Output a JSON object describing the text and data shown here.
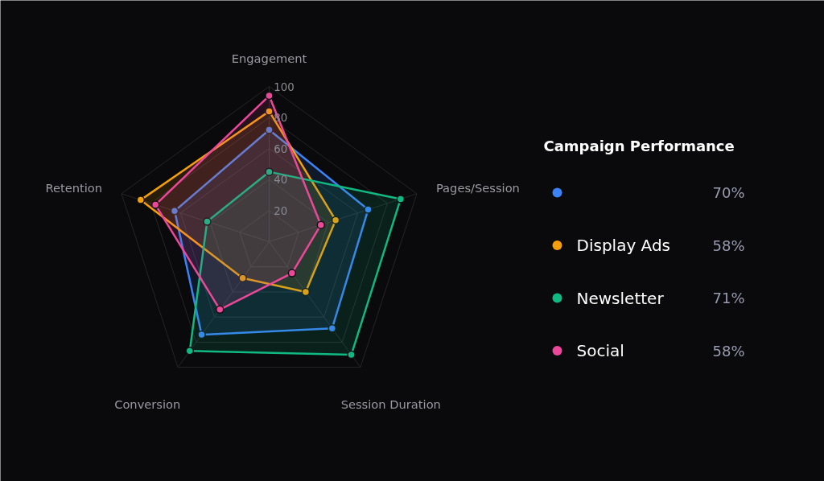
{
  "chart_data": {
    "type": "radar",
    "legend_title": "Campaign Performance",
    "categories": [
      "Engagement",
      "Pages/Session",
      "Session Duration",
      "Conversion",
      "Retention"
    ],
    "series": [
      {
        "color": "#3b82f6",
        "values": [
          72,
          67,
          69,
          74,
          64
        ]
      },
      {
        "name": "Display Ads",
        "color": "#f59e0b",
        "values": [
          84,
          45,
          40,
          29,
          87
        ]
      },
      {
        "name": "Newsletter",
        "color": "#10b981",
        "values": [
          45,
          89,
          90,
          87,
          42
        ]
      },
      {
        "name": "Social",
        "color": "#ec4899",
        "values": [
          94,
          35,
          25,
          54,
          77
        ]
      }
    ],
    "annotations": [
      "70%",
      "58%",
      "71%",
      "58%"
    ],
    "ylim": [
      0,
      100
    ],
    "yticks": [
      20,
      40,
      60,
      80,
      100
    ],
    "grid": true,
    "legend": "right",
    "marker": "circle"
  }
}
